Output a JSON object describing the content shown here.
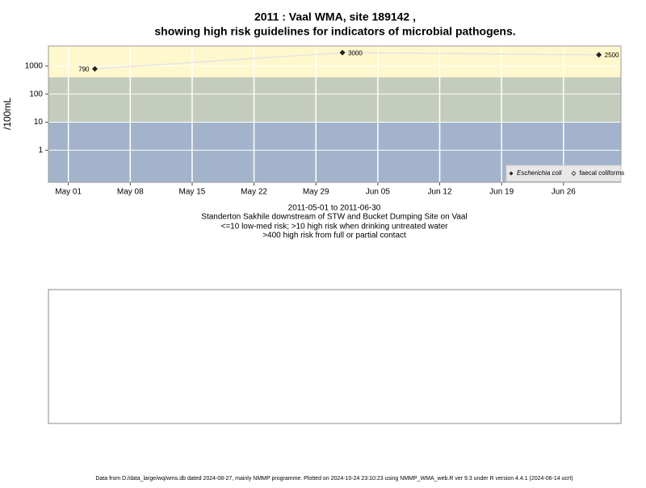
{
  "chart_data": {
    "type": "line",
    "title": "2011 : Vaal WMA, site 189142 ,",
    "subtitle": "showing high risk guidelines for indicators of microbial pathogens.",
    "y_label": "/100mL",
    "date_range": "2011-05-01 to 2011-06-30",
    "site": "Standerton Sakhile downstream of STW and Bucket Dumping Site on Vaal",
    "notes": [
      "<=10 low-med risk; >10 high risk when drinking untreated water",
      ">400 high risk from full or partial contact"
    ],
    "footer": "Data from D:/data_large/wq/wms.db dated 2024-08-27, mainly NMMP programme. Plotted on 2024-10-24 23:10:23 using NMMP_WMA_web.R ver 9.3 under R version 4.4.1 (2024-06-14 ucrt)",
    "x": [
      "2011-05-04",
      "2011-06-01",
      "2011-06-30"
    ],
    "series": [
      {
        "name": "Escherichia coli",
        "color": "#222222",
        "line_color": "#e4e4e4",
        "values": [
          790,
          3000,
          2500
        ]
      },
      {
        "name": "faecal coliforms",
        "color": "#222222",
        "values": [
          null,
          null,
          null
        ]
      }
    ],
    "xlim": [
      "2011-04-28T18:00",
      "2011-07-02T12:00"
    ],
    "xticks": [
      {
        "value": "2011-05-01",
        "label": "May 01"
      },
      {
        "value": "2011-05-08",
        "label": "May 08"
      },
      {
        "value": "2011-05-15",
        "label": "May 15"
      },
      {
        "value": "2011-05-22",
        "label": "May 22"
      },
      {
        "value": "2011-05-29",
        "label": "May 29"
      },
      {
        "value": "2011-06-05",
        "label": "Jun 05"
      },
      {
        "value": "2011-06-12",
        "label": "Jun 12"
      },
      {
        "value": "2011-06-19",
        "label": "Jun 19"
      },
      {
        "value": "2011-06-26",
        "label": "Jun 26"
      }
    ],
    "ylim": [
      0.072,
      5180
    ],
    "yticks": [
      1,
      10,
      100,
      1000
    ],
    "log_y": true,
    "grid": true,
    "legend": "bottom-right",
    "bands": {
      "thresholds": [
        10,
        400
      ],
      "colors": [
        "#a2b3cb",
        "#c4ccbe",
        "#fff8cc"
      ]
    }
  }
}
